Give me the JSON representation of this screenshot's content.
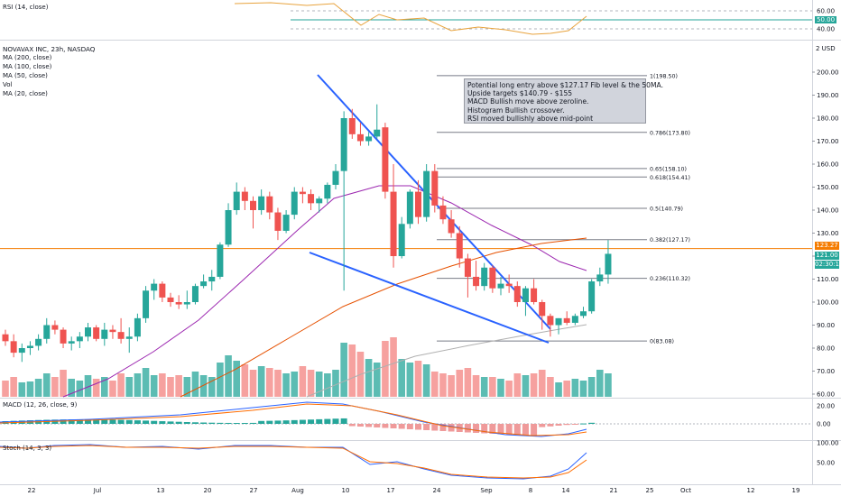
{
  "header": {
    "symbol_line": "NOVAVAX INC, 23h, NASDAQ",
    "currency": "2 USD",
    "indicators": [
      "MA (200, close)",
      "MA (100, close)",
      "MA (50, close)",
      "Vol",
      "MA (20, close)"
    ]
  },
  "panes": {
    "rsi_label": "RSI (14, close)",
    "macd_label": "MACD (12, 26, close, 9)",
    "stoch_label": "Stoch (14, 3, 3)"
  },
  "annotation": {
    "lines": [
      "Potential long entry above $127.17 Fib level & the 50MA.",
      "Upside targets $140.79 - $155",
      "MACD Bullish move above zeroline.",
      "Histogram Bullish crossover.",
      "RSI moved bullishly above mid-point"
    ]
  },
  "price_tags": {
    "last": "123.27",
    "close": "121.00",
    "timer": "02:30:17"
  },
  "colors": {
    "up": "#26a69a",
    "down": "#ef5350",
    "trendline": "#2962ff",
    "ma20": "#9c27b0",
    "ma50": "#e65100",
    "ma100": "#b0b0b0",
    "hline": "#f57c00",
    "rsi": "#e8a33d"
  },
  "chart_data": {
    "type": "candlestick",
    "title": "NOVAVAX INC, 23h, NASDAQ",
    "y_unit": "USD",
    "ylim": [
      58,
      205
    ],
    "y_ticks": [
      "200.00",
      "190.00",
      "180.00",
      "170.00",
      "160.00",
      "150.00",
      "140.00",
      "130.00",
      "120.00",
      "110.00",
      "100.00",
      "90.00",
      "80.00",
      "70.00",
      "60.00"
    ],
    "x_ticks": [
      "22",
      "Jul",
      "13",
      "20",
      "27",
      "Aug",
      "10",
      "17",
      "24",
      "Sep",
      "8",
      "14",
      "21",
      "25",
      "Oct",
      "12",
      "19"
    ],
    "candles": [
      {
        "o": 86,
        "h": 88,
        "l": 81,
        "c": 83
      },
      {
        "o": 83,
        "h": 86,
        "l": 76,
        "c": 78
      },
      {
        "o": 78,
        "h": 82,
        "l": 74,
        "c": 80
      },
      {
        "o": 80,
        "h": 83,
        "l": 77,
        "c": 81
      },
      {
        "o": 81,
        "h": 86,
        "l": 79,
        "c": 84
      },
      {
        "o": 84,
        "h": 93,
        "l": 82,
        "c": 90
      },
      {
        "o": 90,
        "h": 92,
        "l": 86,
        "c": 88
      },
      {
        "o": 88,
        "h": 89,
        "l": 80,
        "c": 82
      },
      {
        "o": 82,
        "h": 85,
        "l": 79,
        "c": 83
      },
      {
        "o": 83,
        "h": 87,
        "l": 80,
        "c": 85
      },
      {
        "o": 85,
        "h": 91,
        "l": 83,
        "c": 89
      },
      {
        "o": 89,
        "h": 90,
        "l": 83,
        "c": 84
      },
      {
        "o": 84,
        "h": 91,
        "l": 81,
        "c": 88
      },
      {
        "o": 88,
        "h": 90,
        "l": 84,
        "c": 87
      },
      {
        "o": 87,
        "h": 93,
        "l": 82,
        "c": 84
      },
      {
        "o": 84,
        "h": 89,
        "l": 78,
        "c": 85
      },
      {
        "o": 85,
        "h": 95,
        "l": 83,
        "c": 93
      },
      {
        "o": 93,
        "h": 107,
        "l": 91,
        "c": 105
      },
      {
        "o": 105,
        "h": 110,
        "l": 101,
        "c": 108
      },
      {
        "o": 108,
        "h": 109,
        "l": 100,
        "c": 102
      },
      {
        "o": 102,
        "h": 104,
        "l": 98,
        "c": 100
      },
      {
        "o": 100,
        "h": 103,
        "l": 97,
        "c": 99
      },
      {
        "o": 99,
        "h": 105,
        "l": 97,
        "c": 100
      },
      {
        "o": 100,
        "h": 108,
        "l": 99,
        "c": 107
      },
      {
        "o": 107,
        "h": 112,
        "l": 106,
        "c": 109
      },
      {
        "o": 109,
        "h": 114,
        "l": 105,
        "c": 111
      },
      {
        "o": 111,
        "h": 126,
        "l": 110,
        "c": 125
      },
      {
        "o": 125,
        "h": 143,
        "l": 124,
        "c": 140
      },
      {
        "o": 140,
        "h": 152,
        "l": 138,
        "c": 148
      },
      {
        "o": 148,
        "h": 150,
        "l": 140,
        "c": 144
      },
      {
        "o": 144,
        "h": 146,
        "l": 132,
        "c": 140
      },
      {
        "o": 140,
        "h": 149,
        "l": 138,
        "c": 146
      },
      {
        "o": 146,
        "h": 148,
        "l": 136,
        "c": 139
      },
      {
        "o": 139,
        "h": 141,
        "l": 127,
        "c": 131
      },
      {
        "o": 131,
        "h": 140,
        "l": 130,
        "c": 138
      },
      {
        "o": 138,
        "h": 150,
        "l": 136,
        "c": 148
      },
      {
        "o": 148,
        "h": 150,
        "l": 143,
        "c": 147
      },
      {
        "o": 147,
        "h": 149,
        "l": 140,
        "c": 143
      },
      {
        "o": 143,
        "h": 146,
        "l": 139,
        "c": 145
      },
      {
        "o": 145,
        "h": 152,
        "l": 143,
        "c": 151
      },
      {
        "o": 151,
        "h": 160,
        "l": 149,
        "c": 157
      },
      {
        "o": 157,
        "h": 183,
        "l": 105,
        "c": 180
      },
      {
        "o": 180,
        "h": 184,
        "l": 171,
        "c": 173
      },
      {
        "o": 173,
        "h": 178,
        "l": 168,
        "c": 170
      },
      {
        "o": 170,
        "h": 174,
        "l": 168,
        "c": 172
      },
      {
        "o": 172,
        "h": 186,
        "l": 171,
        "c": 175
      },
      {
        "o": 176,
        "h": 178,
        "l": 145,
        "c": 148
      },
      {
        "o": 148,
        "h": 160,
        "l": 115,
        "c": 120
      },
      {
        "o": 120,
        "h": 137,
        "l": 119,
        "c": 134
      },
      {
        "o": 134,
        "h": 149,
        "l": 132,
        "c": 148
      },
      {
        "o": 148,
        "h": 153,
        "l": 134,
        "c": 137
      },
      {
        "o": 137,
        "h": 160,
        "l": 135,
        "c": 157
      },
      {
        "o": 157,
        "h": 160,
        "l": 139,
        "c": 142
      },
      {
        "o": 142,
        "h": 146,
        "l": 134,
        "c": 136
      },
      {
        "o": 136,
        "h": 140,
        "l": 128,
        "c": 130
      },
      {
        "o": 130,
        "h": 133,
        "l": 115,
        "c": 119
      },
      {
        "o": 119,
        "h": 121,
        "l": 102,
        "c": 111
      },
      {
        "o": 111,
        "h": 118,
        "l": 105,
        "c": 107
      },
      {
        "o": 107,
        "h": 117,
        "l": 105,
        "c": 115
      },
      {
        "o": 115,
        "h": 116,
        "l": 104,
        "c": 106
      },
      {
        "o": 106,
        "h": 111,
        "l": 103,
        "c": 108
      },
      {
        "o": 108,
        "h": 112,
        "l": 104,
        "c": 107
      },
      {
        "o": 107,
        "h": 109,
        "l": 98,
        "c": 100
      },
      {
        "o": 100,
        "h": 107,
        "l": 94,
        "c": 106
      },
      {
        "o": 106,
        "h": 110,
        "l": 99,
        "c": 100
      },
      {
        "o": 100,
        "h": 101,
        "l": 88,
        "c": 94
      },
      {
        "o": 94,
        "h": 95,
        "l": 85,
        "c": 90
      },
      {
        "o": 90,
        "h": 93,
        "l": 86,
        "c": 93
      },
      {
        "o": 93,
        "h": 96,
        "l": 90,
        "c": 91
      },
      {
        "o": 91,
        "h": 95,
        "l": 90,
        "c": 94
      },
      {
        "o": 94,
        "h": 98,
        "l": 93,
        "c": 96
      },
      {
        "o": 96,
        "h": 110,
        "l": 95,
        "c": 109
      },
      {
        "o": 109,
        "h": 115,
        "l": 107,
        "c": 112
      },
      {
        "o": 112,
        "h": 127,
        "l": 108,
        "c": 121
      }
    ],
    "fibonacci": [
      {
        "label": "1(198.50)",
        "value": 198.5
      },
      {
        "label": "0.786(173.80)",
        "value": 173.8
      },
      {
        "label": "0.65(158.10)",
        "value": 158.1
      },
      {
        "label": "0.618(154.41)",
        "value": 154.41
      },
      {
        "label": "0.5(140.79)",
        "value": 140.79
      },
      {
        "label": "0.382(127.17)",
        "value": 127.17
      },
      {
        "label": "0.236(110.32)",
        "value": 110.32
      },
      {
        "label": "0(83.08)",
        "value": 83.08
      }
    ],
    "horizontal_level": 123.27,
    "rsi": {
      "ticks": [
        "60.00",
        "50.00",
        "40.00"
      ],
      "current": "50.00"
    },
    "macd": {
      "ticks": [
        "20.00",
        "0.00"
      ]
    },
    "stoch": {
      "ticks": [
        "100.00",
        "50.00"
      ]
    }
  }
}
